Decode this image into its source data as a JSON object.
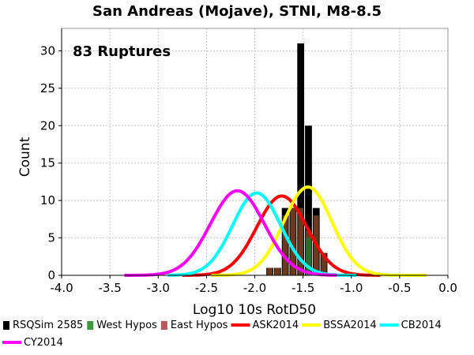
{
  "chart_data": {
    "type": "bar",
    "title": "San Andreas (Mojave), STNI, M8-8.5",
    "xlabel": "Log10 10s RotD50",
    "ylabel": "Count",
    "annotation": "83 Ruptures",
    "xlim": [
      -4.0,
      0.0
    ],
    "ylim": [
      0,
      33
    ],
    "x_ticks": [
      -4.0,
      -3.5,
      -3.0,
      -2.5,
      -2.0,
      -1.5,
      -1.0,
      -0.5,
      0.0
    ],
    "x_tick_labels": [
      "-4.0",
      "-3.5",
      "-3.0",
      "-2.5",
      "-2.0",
      "-1.5",
      "-1.0",
      "-0.5",
      "0.0"
    ],
    "y_ticks": [
      0,
      5,
      10,
      15,
      20,
      25,
      30
    ],
    "y_tick_labels": [
      "0",
      "5",
      "10",
      "15",
      "20",
      "25",
      "30"
    ],
    "grid": true,
    "bin_width": 0.08,
    "histogram": {
      "bin_centers": [
        -1.84,
        -1.76,
        -1.68,
        -1.6,
        -1.52,
        -1.44,
        -1.36,
        -1.28,
        -1.2
      ],
      "total": [
        1,
        1,
        9,
        9,
        31,
        20,
        9,
        3,
        0
      ],
      "west_hypos": [
        0,
        0,
        0,
        0,
        0,
        5,
        0,
        0,
        0
      ],
      "east_hypos": [
        1,
        1,
        8,
        9,
        9,
        6,
        8,
        3,
        0
      ]
    },
    "curves": [
      {
        "name": "ASK2014",
        "color": "#ff0000",
        "mean": -1.72,
        "sigma": 0.26,
        "peak": 10.6,
        "x_range": [
          -2.75,
          -0.7
        ]
      },
      {
        "name": "BSSA2014",
        "color": "#ffff00",
        "mean": -1.45,
        "sigma": 0.25,
        "peak": 11.8,
        "x_range": [
          -2.45,
          -0.22
        ]
      },
      {
        "name": "CB2014",
        "color": "#00ffff",
        "mean": -1.98,
        "sigma": 0.25,
        "peak": 11.0,
        "x_range": [
          -2.9,
          -0.95
        ]
      },
      {
        "name": "CY2014",
        "color": "#ff00ff",
        "mean": -2.18,
        "sigma": 0.28,
        "peak": 11.3,
        "x_range": [
          -3.35,
          -1.15
        ]
      }
    ],
    "legend": {
      "placement": "bottom",
      "entries": [
        {
          "label": "RSQSim 2585",
          "color": "#000000",
          "kind": "box"
        },
        {
          "label": "West Hypos",
          "color": "#3c9a3c",
          "kind": "box"
        },
        {
          "label": "East Hypos",
          "color": "#b45a5a",
          "kind": "box"
        },
        {
          "label": "ASK2014",
          "color": "#ff0000",
          "kind": "line"
        },
        {
          "label": "BSSA2014",
          "color": "#ffff00",
          "kind": "line"
        },
        {
          "label": "CB2014",
          "color": "#00ffff",
          "kind": "line"
        },
        {
          "label": "CY2014",
          "color": "#ff00ff",
          "kind": "line"
        }
      ]
    },
    "colors": {
      "total_bar": "#000000",
      "east_bar": "#6b3a1e",
      "west_bar": "#2e6b2e",
      "grid": "#c8c8c8"
    }
  }
}
